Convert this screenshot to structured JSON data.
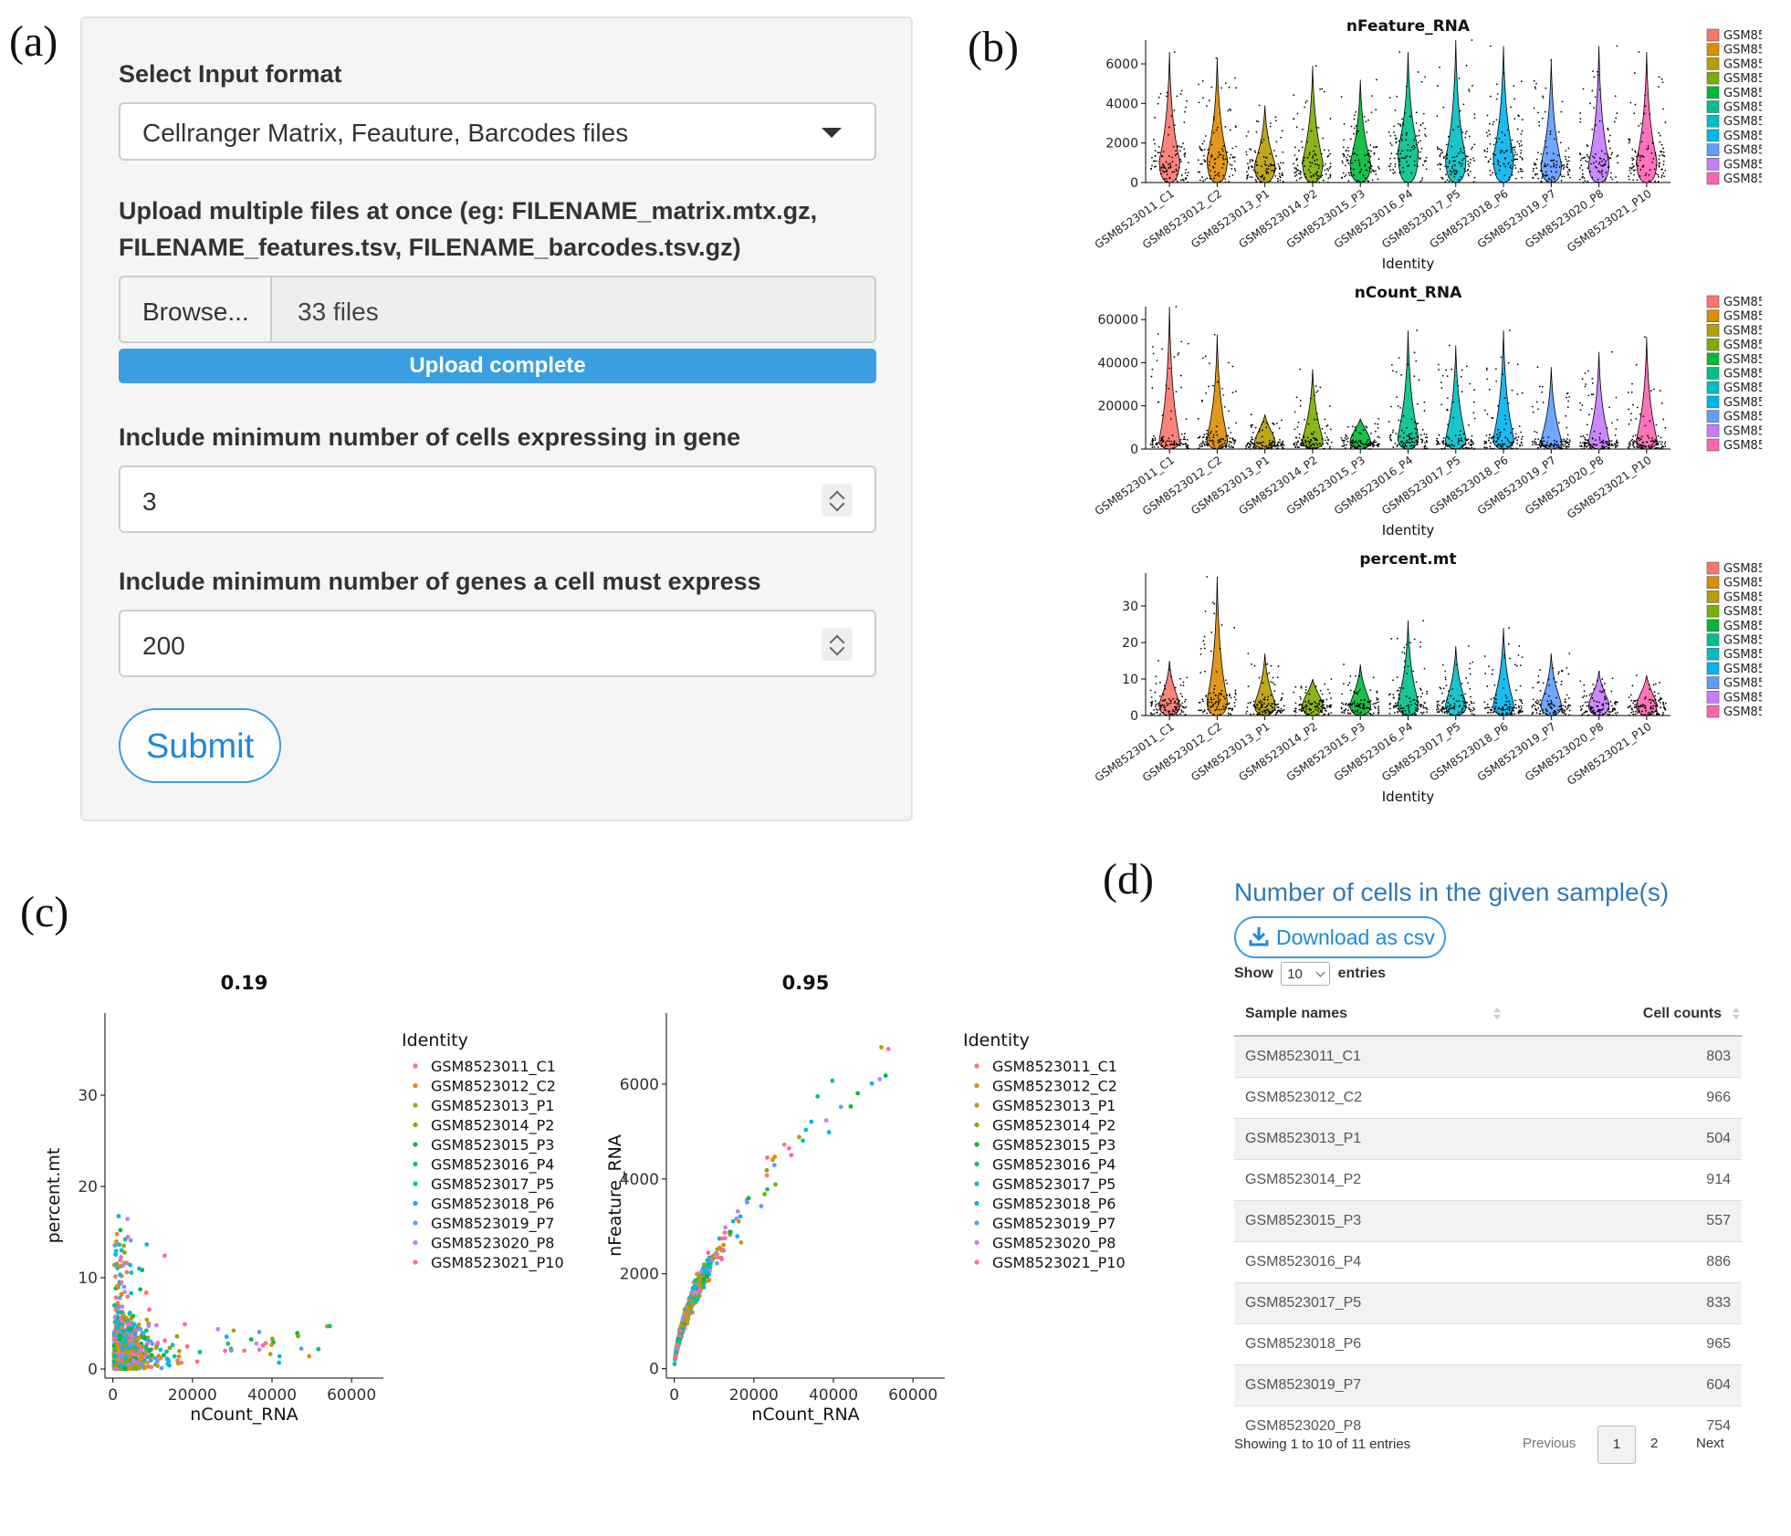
{
  "panel_letters": {
    "a": "(a)",
    "b": "(b)",
    "c": "(c)",
    "d": "(d)"
  },
  "form": {
    "select_label": "Select Input format",
    "select_value": "Cellranger Matrix, Feauture, Barcodes files",
    "upload_label_line1": "Upload multiple files at once (eg: FILENAME_matrix.mtx.gz,",
    "upload_label_line2": "FILENAME_features.tsv, FILENAME_barcodes.tsv.gz)",
    "browse_label": "Browse...",
    "file_count": "33 files",
    "progress_text": "Upload complete",
    "progress_fraction": 1.0,
    "min_cells_label": "Include minimum number of cells expressing in gene",
    "min_cells_value": "3",
    "min_genes_label": "Include minimum number of genes a cell must express",
    "min_genes_value": "200",
    "submit_label": "Submit"
  },
  "chart_data": [
    {
      "type": "violin",
      "title": "nFeature_RNA",
      "xlabel": "Identity",
      "categories": [
        "GSM8523011_C1",
        "GSM8523012_C2",
        "GSM8523013_P1",
        "GSM8523014_P2",
        "GSM8523015_P3",
        "GSM8523016_P4",
        "GSM8523017_P5",
        "GSM8523018_P6",
        "GSM8523019_P7",
        "GSM8523020_P8",
        "GSM8523021_P10"
      ],
      "yticks": [
        0,
        2000,
        4000,
        6000
      ],
      "ylim": [
        0,
        7200
      ],
      "medians": [
        900,
        1000,
        700,
        850,
        800,
        1400,
        1000,
        1100,
        700,
        750,
        900
      ],
      "maxima": [
        6600,
        6300,
        3900,
        5900,
        5200,
        6600,
        7200,
        6900,
        6200,
        6900,
        6600
      ]
    },
    {
      "type": "violin",
      "title": "nCount_RNA",
      "xlabel": "Identity",
      "categories": [
        "GSM8523011_C1",
        "GSM8523012_C2",
        "GSM8523013_P1",
        "GSM8523014_P2",
        "GSM8523015_P3",
        "GSM8523016_P4",
        "GSM8523017_P5",
        "GSM8523018_P6",
        "GSM8523019_P7",
        "GSM8523020_P8",
        "GSM8523021_P10"
      ],
      "yticks": [
        0,
        20000,
        40000,
        60000
      ],
      "ylim": [
        0,
        66000
      ],
      "medians": [
        2500,
        3000,
        2000,
        2500,
        2200,
        4000,
        3000,
        3200,
        2000,
        2200,
        2500
      ],
      "maxima": [
        66000,
        53000,
        16000,
        37000,
        14000,
        55000,
        48000,
        55000,
        38000,
        45000,
        52000
      ]
    },
    {
      "type": "violin",
      "title": "percent.mt",
      "xlabel": "Identity",
      "categories": [
        "GSM8523011_C1",
        "GSM8523012_C2",
        "GSM8523013_P1",
        "GSM8523014_P2",
        "GSM8523015_P3",
        "GSM8523016_P4",
        "GSM8523017_P5",
        "GSM8523018_P6",
        "GSM8523019_P7",
        "GSM8523020_P8",
        "GSM8523021_P10"
      ],
      "yticks": [
        0,
        10,
        20,
        30
      ],
      "ylim": [
        0,
        39
      ],
      "medians": [
        2,
        3,
        2,
        2,
        2,
        2.5,
        2,
        2,
        2,
        2,
        2
      ],
      "maxima": [
        15,
        38,
        17,
        10,
        14,
        26,
        19,
        24,
        17,
        12,
        11
      ]
    },
    {
      "type": "scatter",
      "title": "0.19",
      "xlabel": "nCount_RNA",
      "ylabel": "percent.mt",
      "xticks": [
        0,
        20000,
        40000,
        60000
      ],
      "yticks": [
        0,
        10,
        20,
        30
      ],
      "xlim": [
        -2000,
        68000
      ],
      "ylim": [
        -1,
        39
      ],
      "legend_title": "Identity",
      "series": [
        "GSM8523011_C1",
        "GSM8523012_C2",
        "GSM8523013_P1",
        "GSM8523014_P2",
        "GSM8523015_P3",
        "GSM8523016_P4",
        "GSM8523017_P5",
        "GSM8523018_P6",
        "GSM8523019_P7",
        "GSM8523020_P8",
        "GSM8523021_P10"
      ]
    },
    {
      "type": "scatter",
      "title": "0.95",
      "xlabel": "nCount_RNA",
      "ylabel": "nFeature_RNA",
      "xticks": [
        0,
        20000,
        40000,
        60000
      ],
      "yticks": [
        0,
        2000,
        4000,
        6000
      ],
      "xlim": [
        -2000,
        68000
      ],
      "ylim": [
        -200,
        7500
      ],
      "legend_title": "Identity",
      "series": [
        "GSM8523011_C1",
        "GSM8523012_C2",
        "GSM8523013_P1",
        "GSM8523014_P2",
        "GSM8523015_P3",
        "GSM8523016_P4",
        "GSM8523017_P5",
        "GSM8523018_P6",
        "GSM8523019_P7",
        "GSM8523020_P8",
        "GSM8523021_P10"
      ]
    }
  ],
  "series_colors": [
    "#F8766D",
    "#DE8C00",
    "#B79F00",
    "#7CAE00",
    "#00BA38",
    "#00C08B",
    "#00BFC4",
    "#00B4F0",
    "#619CFF",
    "#C77CFF",
    "#FF64B0"
  ],
  "table": {
    "title": "Number of cells in the given sample(s)",
    "download_label": "Download as csv",
    "show_label": "Show",
    "entries_label": "entries",
    "page_length": "10",
    "columns": [
      "Sample names",
      "Cell counts"
    ],
    "rows": [
      [
        "GSM8523011_C1",
        "803"
      ],
      [
        "GSM8523012_C2",
        "966"
      ],
      [
        "GSM8523013_P1",
        "504"
      ],
      [
        "GSM8523014_P2",
        "914"
      ],
      [
        "GSM8523015_P3",
        "557"
      ],
      [
        "GSM8523016_P4",
        "886"
      ],
      [
        "GSM8523017_P5",
        "833"
      ],
      [
        "GSM8523018_P6",
        "965"
      ],
      [
        "GSM8523019_P7",
        "604"
      ],
      [
        "GSM8523020_P8",
        "754"
      ]
    ],
    "info": "Showing 1 to 10 of 11 entries",
    "pager": {
      "previous": "Previous",
      "page1": "1",
      "page2": "2",
      "next": "Next"
    }
  }
}
